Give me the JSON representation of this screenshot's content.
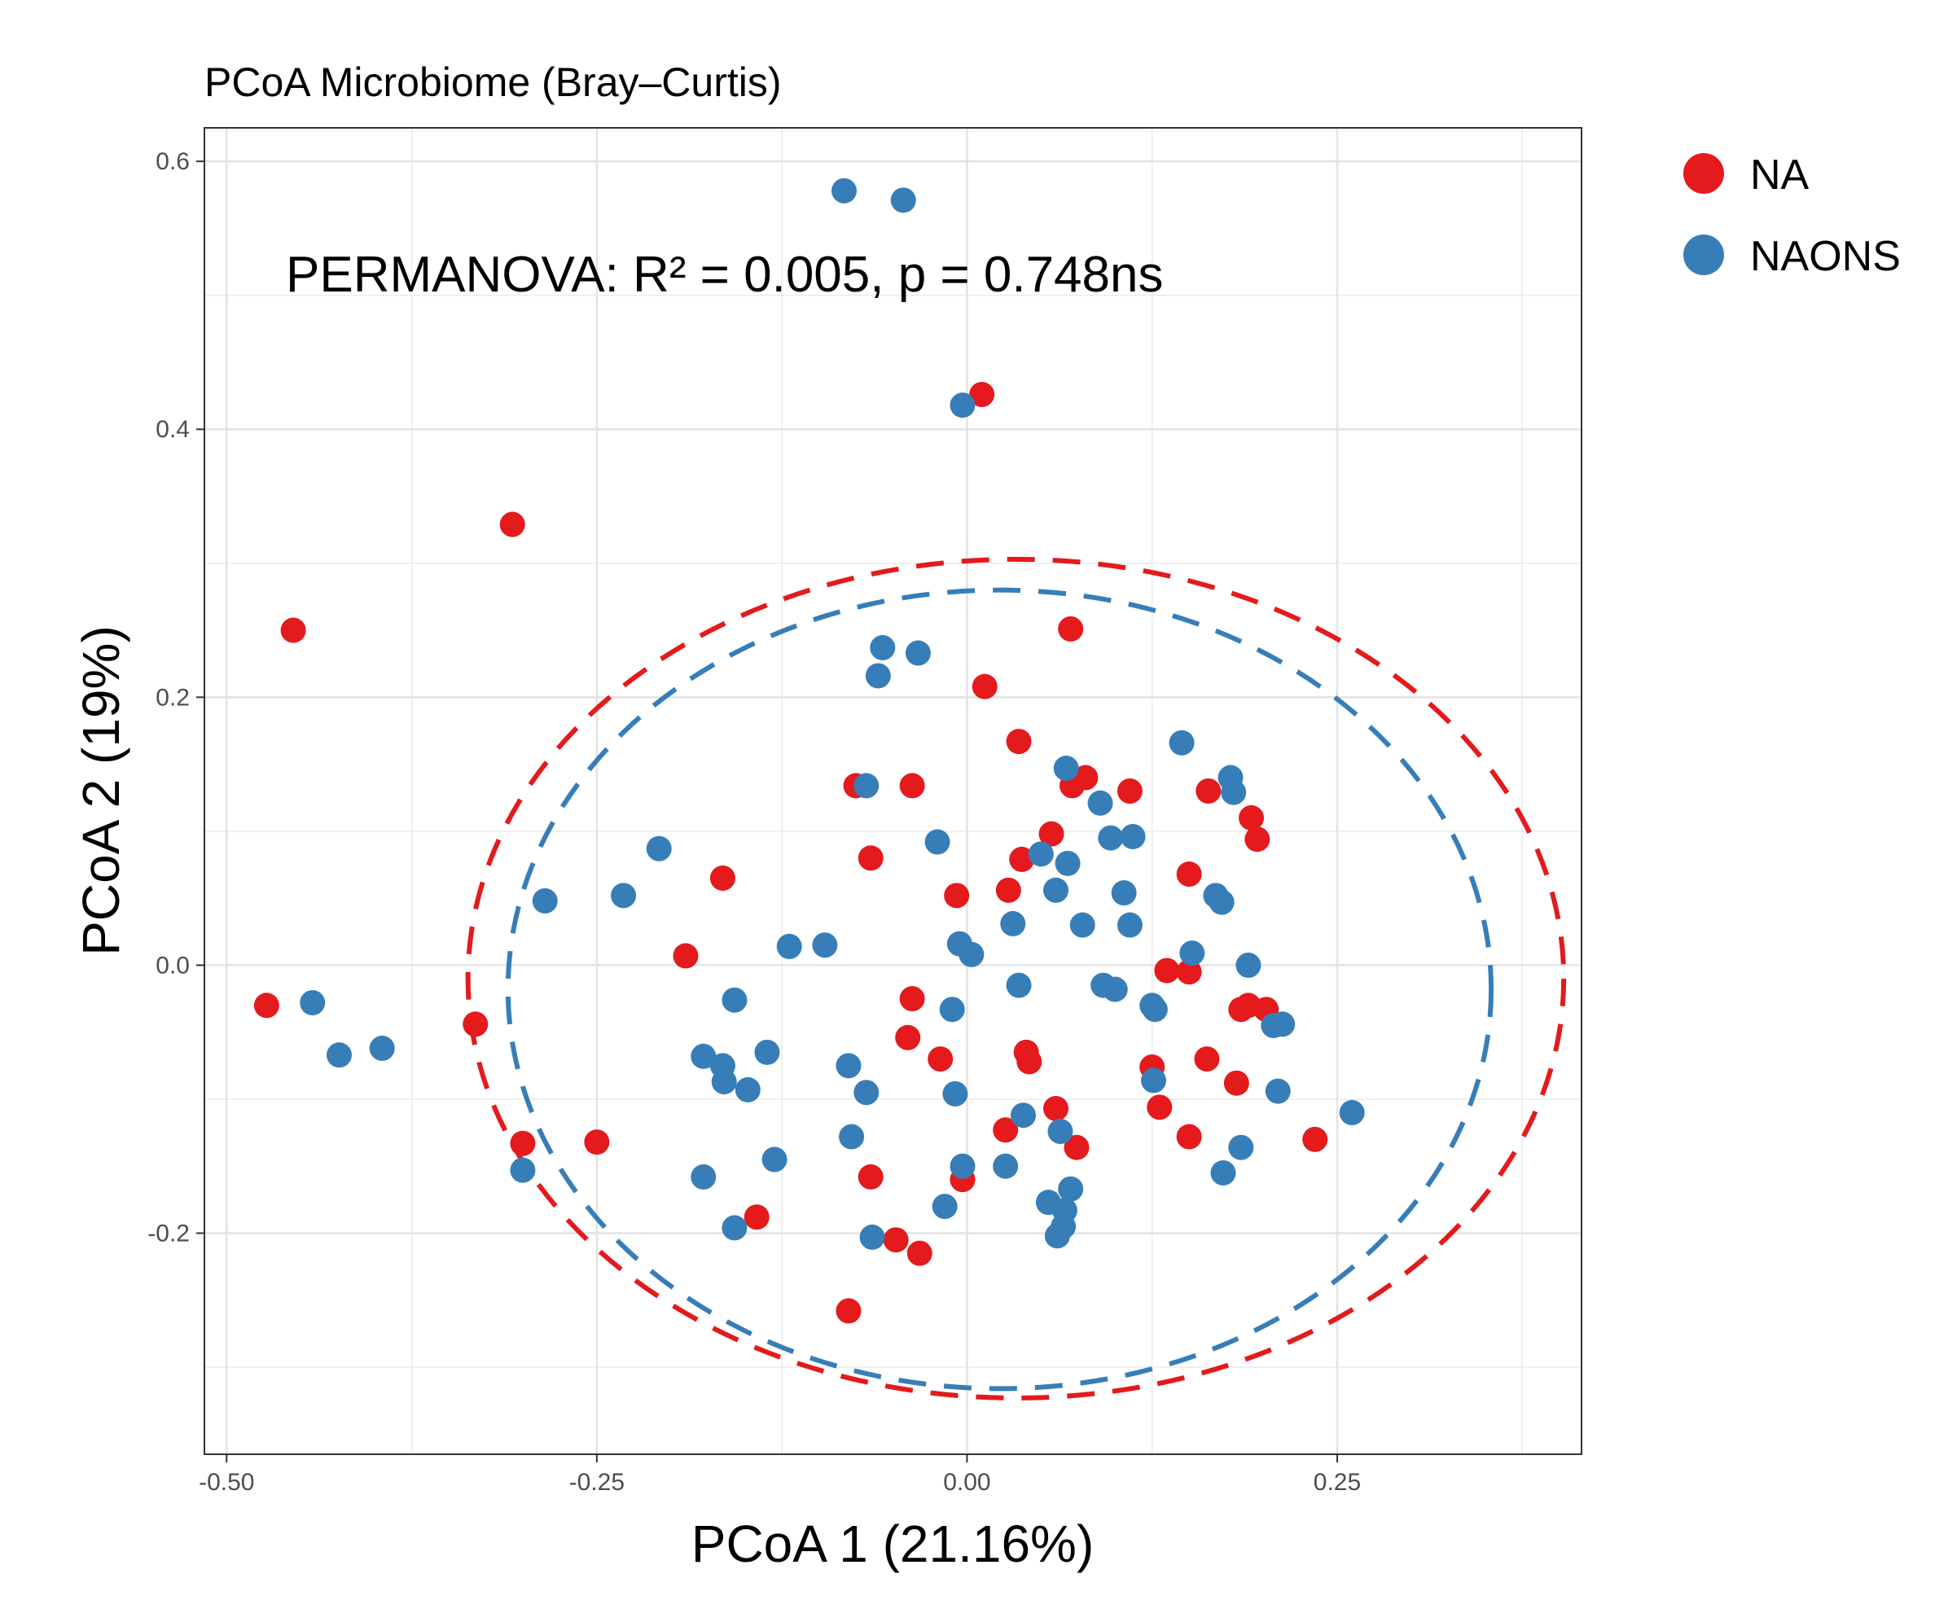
{
  "chart_data": {
    "type": "scatter",
    "title": "PCoA Microbiome (Bray–Curtis)",
    "xlabel": "PCoA 1 (21.16%)",
    "ylabel": "PCoA 2 (19%)",
    "xlim": [
      -0.515,
      0.415
    ],
    "ylim": [
      -0.365,
      0.625
    ],
    "xticks": [
      -0.5,
      -0.25,
      0.0,
      0.25
    ],
    "xtick_labels": [
      "-0.50",
      "-0.25",
      "0.00",
      "0.25"
    ],
    "yticks": [
      -0.2,
      0.0,
      0.2,
      0.4,
      0.6
    ],
    "ytick_labels": [
      "-0.2",
      "0.0",
      "0.2",
      "0.4",
      "0.6"
    ],
    "grid": true,
    "legend_position": "right",
    "annotation": "PERMANOVA: R² = 0.005, p = 0.748ns",
    "series": [
      {
        "name": "NA",
        "color": "#e41a1c",
        "ellipse": {
          "cx": 0.033,
          "cy": -0.01,
          "rx": 0.37,
          "ry": 0.313,
          "style": "dashed"
        },
        "points": [
          [
            -0.473,
            -0.03
          ],
          [
            -0.455,
            0.25
          ],
          [
            -0.307,
            0.329
          ],
          [
            -0.332,
            -0.044
          ],
          [
            -0.3,
            -0.133
          ],
          [
            -0.25,
            -0.132
          ],
          [
            -0.19,
            0.007
          ],
          [
            -0.165,
            0.065
          ],
          [
            -0.142,
            -0.188
          ],
          [
            -0.08,
            -0.258
          ],
          [
            -0.075,
            0.134
          ],
          [
            -0.065,
            0.08
          ],
          [
            -0.065,
            -0.158
          ],
          [
            -0.048,
            -0.205
          ],
          [
            -0.04,
            -0.054
          ],
          [
            -0.037,
            -0.025
          ],
          [
            -0.037,
            0.134
          ],
          [
            -0.032,
            -0.215
          ],
          [
            -0.018,
            -0.07
          ],
          [
            -0.007,
            0.052
          ],
          [
            -0.003,
            -0.16
          ],
          [
            0.012,
            0.208
          ],
          [
            0.026,
            -0.123
          ],
          [
            0.028,
            0.056
          ],
          [
            0.035,
            0.167
          ],
          [
            0.037,
            0.079
          ],
          [
            0.04,
            -0.065
          ],
          [
            0.042,
            -0.072
          ],
          [
            0.057,
            0.098
          ],
          [
            0.06,
            -0.107
          ],
          [
            0.07,
            0.251
          ],
          [
            0.071,
            0.134
          ],
          [
            0.074,
            -0.136
          ],
          [
            0.08,
            0.14
          ],
          [
            0.11,
            0.13
          ],
          [
            0.125,
            -0.076
          ],
          [
            0.13,
            -0.106
          ],
          [
            0.135,
            -0.004
          ],
          [
            0.15,
            0.068
          ],
          [
            0.15,
            -0.005
          ],
          [
            0.15,
            -0.128
          ],
          [
            0.163,
            0.13
          ],
          [
            0.162,
            -0.07
          ],
          [
            0.182,
            -0.088
          ],
          [
            0.185,
            -0.033
          ],
          [
            0.19,
            -0.03
          ],
          [
            0.192,
            0.11
          ],
          [
            0.196,
            0.094
          ],
          [
            0.202,
            -0.033
          ],
          [
            0.235,
            -0.13
          ],
          [
            0.01,
            0.426
          ]
        ]
      },
      {
        "name": "NAONS",
        "color": "#377eb8",
        "ellipse": {
          "cx": 0.022,
          "cy": -0.018,
          "rx": 0.332,
          "ry": 0.298,
          "style": "dashed"
        },
        "points": [
          [
            -0.442,
            -0.028
          ],
          [
            -0.424,
            -0.067
          ],
          [
            -0.395,
            -0.062
          ],
          [
            -0.3,
            -0.153
          ],
          [
            -0.285,
            0.048
          ],
          [
            -0.232,
            0.052
          ],
          [
            -0.208,
            0.087
          ],
          [
            -0.178,
            -0.068
          ],
          [
            -0.178,
            -0.158
          ],
          [
            -0.165,
            -0.075
          ],
          [
            -0.164,
            -0.087
          ],
          [
            -0.157,
            -0.026
          ],
          [
            -0.157,
            -0.196
          ],
          [
            -0.148,
            -0.093
          ],
          [
            -0.135,
            -0.065
          ],
          [
            -0.13,
            -0.145
          ],
          [
            -0.12,
            0.014
          ],
          [
            -0.096,
            0.015
          ],
          [
            -0.083,
            0.578
          ],
          [
            -0.08,
            -0.075
          ],
          [
            -0.078,
            -0.128
          ],
          [
            -0.068,
            -0.095
          ],
          [
            -0.068,
            0.134
          ],
          [
            -0.064,
            -0.203
          ],
          [
            -0.06,
            0.216
          ],
          [
            -0.057,
            0.237
          ],
          [
            -0.043,
            0.571
          ],
          [
            -0.033,
            0.233
          ],
          [
            -0.02,
            0.092
          ],
          [
            -0.015,
            -0.18
          ],
          [
            -0.01,
            -0.033
          ],
          [
            -0.008,
            -0.096
          ],
          [
            -0.005,
            0.016
          ],
          [
            -0.003,
            -0.15
          ],
          [
            -0.003,
            0.418
          ],
          [
            0.003,
            0.008
          ],
          [
            0.026,
            -0.15
          ],
          [
            0.031,
            0.031
          ],
          [
            0.035,
            -0.015
          ],
          [
            0.038,
            -0.112
          ],
          [
            0.05,
            0.083
          ],
          [
            0.055,
            -0.177
          ],
          [
            0.06,
            0.056
          ],
          [
            0.061,
            -0.202
          ],
          [
            0.063,
            -0.124
          ],
          [
            0.065,
            -0.195
          ],
          [
            0.066,
            -0.183
          ],
          [
            0.067,
            0.147
          ],
          [
            0.068,
            0.076
          ],
          [
            0.07,
            -0.167
          ],
          [
            0.078,
            0.03
          ],
          [
            0.09,
            0.121
          ],
          [
            0.092,
            -0.015
          ],
          [
            0.097,
            0.095
          ],
          [
            0.1,
            -0.018
          ],
          [
            0.106,
            0.054
          ],
          [
            0.11,
            0.03
          ],
          [
            0.112,
            0.096
          ],
          [
            0.125,
            -0.03
          ],
          [
            0.126,
            -0.086
          ],
          [
            0.127,
            -0.033
          ],
          [
            0.145,
            0.166
          ],
          [
            0.152,
            0.009
          ],
          [
            0.168,
            0.052
          ],
          [
            0.172,
            0.047
          ],
          [
            0.173,
            -0.155
          ],
          [
            0.178,
            0.14
          ],
          [
            0.18,
            0.129
          ],
          [
            0.185,
            -0.136
          ],
          [
            0.19,
            0.0
          ],
          [
            0.207,
            -0.045
          ],
          [
            0.21,
            -0.094
          ],
          [
            0.213,
            -0.044
          ],
          [
            0.26,
            -0.11
          ]
        ]
      }
    ]
  }
}
